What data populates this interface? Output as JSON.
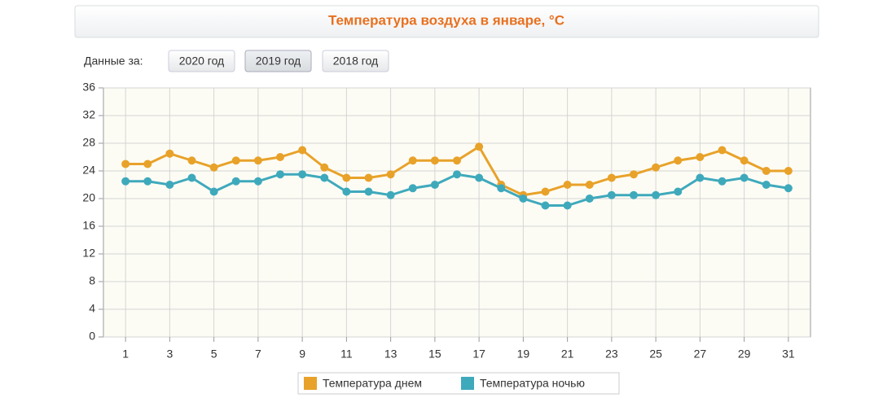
{
  "controls": {
    "label": "Данные за:",
    "buttons": [
      "2020 год",
      "2019 год",
      "2018 год"
    ],
    "selected": 1
  },
  "chart_data": {
    "type": "line",
    "title": "Температура воздуха в январе, °C",
    "x": [
      1,
      2,
      3,
      4,
      5,
      6,
      7,
      8,
      9,
      10,
      11,
      12,
      13,
      14,
      15,
      16,
      17,
      18,
      19,
      20,
      21,
      22,
      23,
      24,
      25,
      26,
      27,
      28,
      29,
      30,
      31
    ],
    "series": [
      {
        "name": "Температура днем",
        "color": "#e8a22a",
        "values": [
          25,
          25,
          26.5,
          25.5,
          24.5,
          25.5,
          25.5,
          26,
          27,
          24.5,
          23,
          23,
          23.5,
          25.5,
          25.5,
          25.5,
          27.5,
          22,
          20.5,
          21,
          22,
          22,
          23,
          23.5,
          24.5,
          25.5,
          26,
          27,
          25.5,
          24,
          24
        ]
      },
      {
        "name": "Температура ночью",
        "color": "#3fa9bc",
        "values": [
          22.5,
          22.5,
          22,
          23,
          21,
          22.5,
          22.5,
          23.5,
          23.5,
          23,
          21,
          21,
          20.5,
          21.5,
          22,
          23.5,
          23,
          21.5,
          20,
          19,
          19,
          20,
          20.5,
          20.5,
          20.5,
          21,
          23,
          22.5,
          23,
          22,
          21.5
        ]
      }
    ],
    "xlim": [
      0,
      32
    ],
    "xticks": [
      1,
      3,
      5,
      7,
      9,
      11,
      13,
      15,
      17,
      19,
      21,
      23,
      25,
      27,
      29,
      31
    ],
    "ylim": [
      0,
      36
    ],
    "yticks": [
      0,
      4,
      8,
      12,
      16,
      20,
      24,
      28,
      32,
      36
    ],
    "grid": true
  }
}
